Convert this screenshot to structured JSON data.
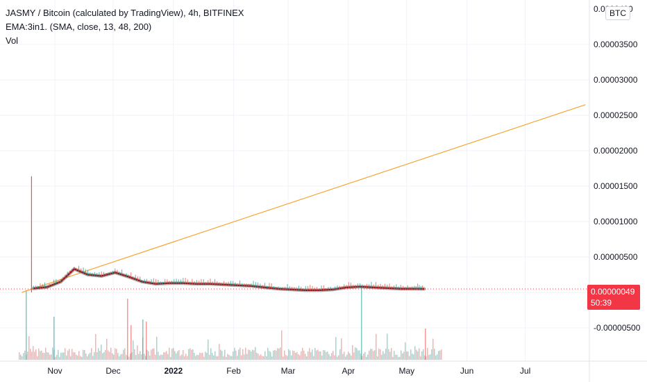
{
  "legend": {
    "title": "JASMY / Bitcoin (calculated by TradingView), 4h, BITFINEX",
    "indicator": "EMA:3in1. (SMA, close, 13, 48, 200)",
    "volume": "Vol"
  },
  "price_axis": {
    "currency": "BTC",
    "ticks": [
      "0.00000500",
      "0.00001000",
      "0.00001500",
      "0.00002000",
      "0.00002500",
      "0.00003000",
      "0.00003500",
      "-0.00000500"
    ]
  },
  "time_axis": {
    "ticks": [
      "Nov",
      "Dec",
      "2022",
      "Feb",
      "Mar",
      "Apr",
      "May",
      "Jun",
      "Jul"
    ]
  },
  "last_price": {
    "value": "0.00000049",
    "countdown": "50:39"
  },
  "colors": {
    "price_line": "#ef9a4a",
    "ema_slow": "#7f1d1d",
    "ema_fast": "#e53935",
    "ema_mid": "#6d6d6d",
    "candle_up": "#26a69a",
    "candle_down": "#ef5350",
    "vol_up": "#26a69a",
    "vol_down": "#ef5350",
    "trendline": "#f7a531",
    "last_price": "#f23645"
  },
  "chart_data": {
    "type": "line",
    "title": "JASMY / Bitcoin (calculated by TradingView), 4h, BITFINEX",
    "xlabel": "",
    "ylabel": "",
    "x_ticks": [
      "Nov",
      "Dec",
      "2022",
      "Feb",
      "Mar",
      "Apr",
      "May",
      "Jun",
      "Jul"
    ],
    "ylim": [
      -6.5e-06,
      3.9e-05
    ],
    "series": [
      {
        "name": "EMA:3in1. (SMA, close, 13, 48, 200)",
        "x": [
          "2021-10-21",
          "2021-10-28",
          "2021-11-04",
          "2021-11-11",
          "2021-11-18",
          "2021-11-25",
          "2021-12-02",
          "2021-12-09",
          "2021-12-16",
          "2021-12-23",
          "2021-12-30",
          "2022-01-06",
          "2022-01-13",
          "2022-01-20",
          "2022-01-27",
          "2022-02-03",
          "2022-02-10",
          "2022-02-17",
          "2022-02-24",
          "2022-03-03",
          "2022-03-10",
          "2022-03-17",
          "2022-03-24",
          "2022-03-31",
          "2022-04-07",
          "2022-04-14",
          "2022-04-21",
          "2022-04-28",
          "2022-05-05",
          "2022-05-10"
        ],
        "values": [
          5.5e-07,
          7.5e-07,
          1.5e-06,
          3.3e-06,
          2.5e-06,
          2.3e-06,
          2.8e-06,
          2.2e-06,
          1.5e-06,
          1.2e-06,
          1.3e-06,
          1.3e-06,
          1.2e-06,
          1.2e-06,
          1.1e-06,
          1e-06,
          9e-07,
          7e-07,
          5e-07,
          4e-07,
          3e-07,
          3e-07,
          4e-07,
          7e-07,
          8e-07,
          7e-07,
          6e-07,
          5e-07,
          5e-07,
          4.9e-07
        ]
      }
    ],
    "spike": {
      "x": "2021-10-20",
      "high": 1.64e-05
    },
    "trendline": {
      "x": [
        "2021-10-15",
        "2022-08-01"
      ],
      "y": [
        0.0,
        2.65e-05
      ]
    },
    "last_value": 4.9e-07
  }
}
